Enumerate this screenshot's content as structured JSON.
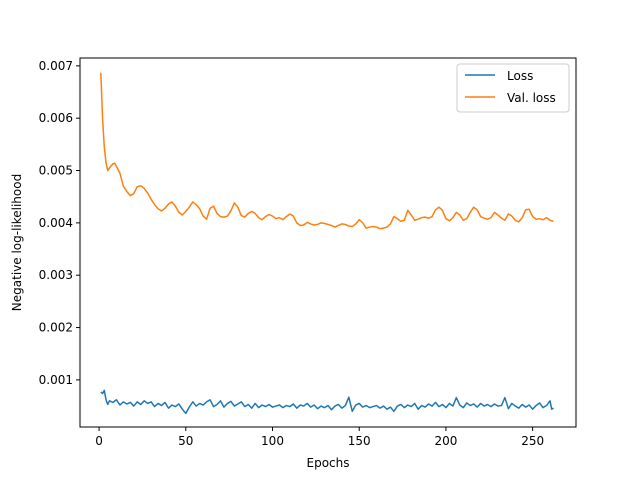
{
  "chart_data": {
    "type": "line",
    "title": "",
    "xlabel": "Epochs",
    "ylabel": "Negative log-likelihood",
    "xlim": [
      -11,
      275
    ],
    "ylim": [
      0.0001,
      0.00715
    ],
    "xticks": [
      0,
      50,
      100,
      150,
      200,
      250
    ],
    "yticks": [
      0.001,
      0.002,
      0.003,
      0.004,
      0.005,
      0.006,
      0.007
    ],
    "ytick_labels": [
      "0.001",
      "0.002",
      "0.003",
      "0.004",
      "0.005",
      "0.006",
      "0.007"
    ],
    "grid": false,
    "legend_position": "top-right",
    "series": [
      {
        "name": "Loss",
        "color": "#1f77b4",
        "points": [
          [
            1,
            0.00077
          ],
          [
            2,
            0.00074
          ],
          [
            3,
            0.0008
          ],
          [
            4,
            0.00062
          ],
          [
            5,
            0.00053
          ],
          [
            6,
            0.0006
          ],
          [
            8,
            0.00057
          ],
          [
            10,
            0.00062
          ],
          [
            12,
            0.00052
          ],
          [
            14,
            0.00058
          ],
          [
            16,
            0.00054
          ],
          [
            18,
            0.00057
          ],
          [
            20,
            0.0005
          ],
          [
            22,
            0.00058
          ],
          [
            24,
            0.00053
          ],
          [
            26,
            0.0006
          ],
          [
            28,
            0.00055
          ],
          [
            30,
            0.00058
          ],
          [
            32,
            0.00049
          ],
          [
            34,
            0.00055
          ],
          [
            36,
            0.00051
          ],
          [
            38,
            0.00057
          ],
          [
            40,
            0.00046
          ],
          [
            42,
            0.00052
          ],
          [
            44,
            0.00049
          ],
          [
            46,
            0.00054
          ],
          [
            48,
            0.00044
          ],
          [
            50,
            0.00036
          ],
          [
            52,
            0.00048
          ],
          [
            54,
            0.00058
          ],
          [
            56,
            0.0005
          ],
          [
            58,
            0.00055
          ],
          [
            60,
            0.00052
          ],
          [
            62,
            0.00058
          ],
          [
            64,
            0.00062
          ],
          [
            66,
            0.00049
          ],
          [
            68,
            0.00053
          ],
          [
            70,
            0.0006
          ],
          [
            72,
            0.00048
          ],
          [
            74,
            0.00055
          ],
          [
            76,
            0.00059
          ],
          [
            78,
            0.0005
          ],
          [
            80,
            0.00054
          ],
          [
            82,
            0.00058
          ],
          [
            84,
            0.00049
          ],
          [
            86,
            0.00053
          ],
          [
            88,
            0.00046
          ],
          [
            90,
            0.00055
          ],
          [
            92,
            0.00047
          ],
          [
            94,
            0.00052
          ],
          [
            96,
            0.00049
          ],
          [
            98,
            0.00053
          ],
          [
            100,
            0.00048
          ],
          [
            102,
            0.0005
          ],
          [
            104,
            0.00052
          ],
          [
            106,
            0.00047
          ],
          [
            108,
            0.00051
          ],
          [
            110,
            0.00049
          ],
          [
            112,
            0.00054
          ],
          [
            114,
            0.00046
          ],
          [
            116,
            0.00052
          ],
          [
            118,
            0.0005
          ],
          [
            120,
            0.00055
          ],
          [
            122,
            0.00048
          ],
          [
            124,
            0.00052
          ],
          [
            126,
            0.00045
          ],
          [
            128,
            0.0005
          ],
          [
            130,
            0.00047
          ],
          [
            132,
            0.00051
          ],
          [
            134,
            0.00043
          ],
          [
            136,
            0.0005
          ],
          [
            138,
            0.00053
          ],
          [
            140,
            0.00046
          ],
          [
            142,
            0.00051
          ],
          [
            144,
            0.00067
          ],
          [
            146,
            0.0004
          ],
          [
            148,
            0.00052
          ],
          [
            150,
            0.00055
          ],
          [
            152,
            0.00048
          ],
          [
            154,
            0.00051
          ],
          [
            156,
            0.00047
          ],
          [
            158,
            0.00049
          ],
          [
            160,
            0.00051
          ],
          [
            162,
            0.00046
          ],
          [
            164,
            0.0005
          ],
          [
            166,
            0.00044
          ],
          [
            168,
            0.00048
          ],
          [
            170,
            0.0004
          ],
          [
            172,
            0.0005
          ],
          [
            174,
            0.00053
          ],
          [
            176,
            0.00047
          ],
          [
            178,
            0.00052
          ],
          [
            180,
            0.00049
          ],
          [
            182,
            0.00055
          ],
          [
            184,
            0.00044
          ],
          [
            186,
            0.00051
          ],
          [
            188,
            0.00048
          ],
          [
            190,
            0.00054
          ],
          [
            192,
            0.0005
          ],
          [
            194,
            0.00057
          ],
          [
            196,
            0.00049
          ],
          [
            198,
            0.00053
          ],
          [
            200,
            0.00047
          ],
          [
            202,
            0.00055
          ],
          [
            204,
            0.0005
          ],
          [
            206,
            0.00066
          ],
          [
            208,
            0.00052
          ],
          [
            210,
            0.00047
          ],
          [
            212,
            0.00056
          ],
          [
            214,
            0.00051
          ],
          [
            216,
            0.00054
          ],
          [
            218,
            0.00048
          ],
          [
            220,
            0.00055
          ],
          [
            222,
            0.0005
          ],
          [
            224,
            0.00053
          ],
          [
            226,
            0.00049
          ],
          [
            228,
            0.00054
          ],
          [
            230,
            0.0005
          ],
          [
            232,
            0.00051
          ],
          [
            234,
            0.00066
          ],
          [
            236,
            0.00045
          ],
          [
            238,
            0.00055
          ],
          [
            240,
            0.0005
          ],
          [
            242,
            0.00046
          ],
          [
            244,
            0.00053
          ],
          [
            246,
            0.00048
          ],
          [
            248,
            0.00052
          ],
          [
            250,
            0.00044
          ],
          [
            252,
            0.00051
          ],
          [
            254,
            0.00056
          ],
          [
            256,
            0.00047
          ],
          [
            258,
            0.00051
          ],
          [
            260,
            0.0006
          ],
          [
            261,
            0.00044
          ],
          [
            262,
            0.00046
          ]
        ]
      },
      {
        "name": "Val. loss",
        "color": "#ff7f0e",
        "points": [
          [
            1,
            0.00687
          ],
          [
            2,
            0.006
          ],
          [
            3,
            0.00545
          ],
          [
            4,
            0.00515
          ],
          [
            5,
            0.005
          ],
          [
            6,
            0.00505
          ],
          [
            8,
            0.00513
          ],
          [
            9,
            0.00514
          ],
          [
            10,
            0.00508
          ],
          [
            12,
            0.00495
          ],
          [
            14,
            0.0047
          ],
          [
            16,
            0.0046
          ],
          [
            18,
            0.00452
          ],
          [
            20,
            0.00456
          ],
          [
            22,
            0.00469
          ],
          [
            24,
            0.00471
          ],
          [
            26,
            0.00466
          ],
          [
            28,
            0.00457
          ],
          [
            30,
            0.00445
          ],
          [
            32,
            0.00435
          ],
          [
            34,
            0.00427
          ],
          [
            36,
            0.00423
          ],
          [
            38,
            0.00428
          ],
          [
            40,
            0.00436
          ],
          [
            42,
            0.0044
          ],
          [
            44,
            0.00432
          ],
          [
            46,
            0.0042
          ],
          [
            48,
            0.00415
          ],
          [
            50,
            0.00422
          ],
          [
            52,
            0.0043
          ],
          [
            54,
            0.0044
          ],
          [
            56,
            0.00435
          ],
          [
            58,
            0.00427
          ],
          [
            60,
            0.00413
          ],
          [
            62,
            0.00407
          ],
          [
            64,
            0.00428
          ],
          [
            66,
            0.00432
          ],
          [
            68,
            0.00418
          ],
          [
            70,
            0.00412
          ],
          [
            72,
            0.00411
          ],
          [
            74,
            0.00413
          ],
          [
            76,
            0.00423
          ],
          [
            78,
            0.00438
          ],
          [
            80,
            0.0043
          ],
          [
            82,
            0.00414
          ],
          [
            84,
            0.00411
          ],
          [
            86,
            0.00418
          ],
          [
            88,
            0.00422
          ],
          [
            90,
            0.00418
          ],
          [
            92,
            0.0041
          ],
          [
            94,
            0.00406
          ],
          [
            96,
            0.00412
          ],
          [
            98,
            0.00416
          ],
          [
            100,
            0.00413
          ],
          [
            102,
            0.00408
          ],
          [
            104,
            0.0041
          ],
          [
            106,
            0.00406
          ],
          [
            108,
            0.00412
          ],
          [
            110,
            0.00417
          ],
          [
            112,
            0.00413
          ],
          [
            114,
            0.004
          ],
          [
            116,
            0.00395
          ],
          [
            118,
            0.00396
          ],
          [
            120,
            0.00401
          ],
          [
            122,
            0.00398
          ],
          [
            124,
            0.00396
          ],
          [
            126,
            0.00397
          ],
          [
            128,
            0.004
          ],
          [
            130,
            0.00399
          ],
          [
            132,
            0.00397
          ],
          [
            134,
            0.00395
          ],
          [
            136,
            0.00392
          ],
          [
            138,
            0.00395
          ],
          [
            140,
            0.00398
          ],
          [
            142,
            0.00397
          ],
          [
            144,
            0.00394
          ],
          [
            146,
            0.00393
          ],
          [
            148,
            0.00398
          ],
          [
            150,
            0.00406
          ],
          [
            152,
            0.004
          ],
          [
            154,
            0.0039
          ],
          [
            156,
            0.00392
          ],
          [
            158,
            0.00393
          ],
          [
            160,
            0.00392
          ],
          [
            162,
            0.00389
          ],
          [
            164,
            0.0039
          ],
          [
            166,
            0.00392
          ],
          [
            168,
            0.00398
          ],
          [
            170,
            0.00412
          ],
          [
            172,
            0.00408
          ],
          [
            174,
            0.00403
          ],
          [
            176,
            0.00405
          ],
          [
            178,
            0.00424
          ],
          [
            180,
            0.00415
          ],
          [
            182,
            0.00405
          ],
          [
            184,
            0.00407
          ],
          [
            186,
            0.0041
          ],
          [
            188,
            0.00411
          ],
          [
            190,
            0.00409
          ],
          [
            192,
            0.00412
          ],
          [
            194,
            0.00425
          ],
          [
            196,
            0.0043
          ],
          [
            198,
            0.00424
          ],
          [
            200,
            0.00408
          ],
          [
            202,
            0.00404
          ],
          [
            204,
            0.0041
          ],
          [
            206,
            0.0042
          ],
          [
            208,
            0.00415
          ],
          [
            210,
            0.00405
          ],
          [
            212,
            0.00408
          ],
          [
            214,
            0.0042
          ],
          [
            216,
            0.0043
          ],
          [
            218,
            0.00425
          ],
          [
            220,
            0.00412
          ],
          [
            222,
            0.00409
          ],
          [
            224,
            0.00407
          ],
          [
            226,
            0.0041
          ],
          [
            228,
            0.0042
          ],
          [
            230,
            0.00415
          ],
          [
            232,
            0.00409
          ],
          [
            234,
            0.00405
          ],
          [
            236,
            0.00417
          ],
          [
            238,
            0.00413
          ],
          [
            240,
            0.00405
          ],
          [
            242,
            0.00402
          ],
          [
            244,
            0.0041
          ],
          [
            246,
            0.00425
          ],
          [
            248,
            0.00426
          ],
          [
            250,
            0.00412
          ],
          [
            252,
            0.00407
          ],
          [
            254,
            0.00408
          ],
          [
            256,
            0.00406
          ],
          [
            258,
            0.0041
          ],
          [
            260,
            0.00405
          ],
          [
            262,
            0.00403
          ]
        ]
      }
    ]
  }
}
